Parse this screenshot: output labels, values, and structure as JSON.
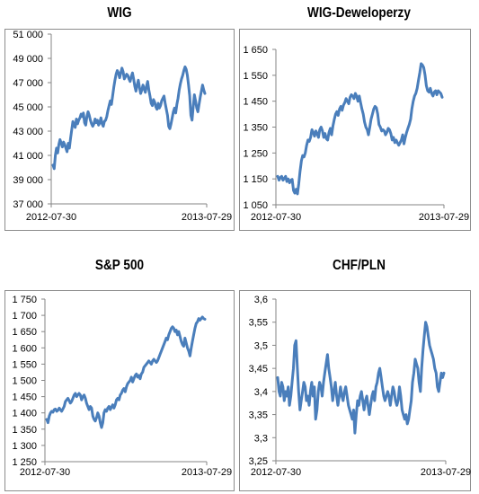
{
  "chart_data": [
    {
      "type": "line",
      "title": "WIG",
      "x_start_label": "2012-07-30",
      "x_end_label": "2013-07-29",
      "ylim": [
        37000,
        51000
      ],
      "y_ticks": [
        "37 000",
        "39 000",
        "41 000",
        "43 000",
        "45 000",
        "47 000",
        "49 000",
        "51 000"
      ],
      "y_tick_values": [
        37000,
        39000,
        41000,
        43000,
        45000,
        47000,
        49000,
        51000
      ],
      "grid": false,
      "series": [
        {
          "color": "#4a7ebb",
          "values": [
            40200,
            39900,
            41000,
            41600,
            41200,
            41900,
            42300,
            42000,
            41700,
            42100,
            41900,
            41600,
            41300,
            42000,
            41600,
            42400,
            43100,
            43800,
            43500,
            43300,
            44000,
            43600,
            43900,
            44100,
            44400,
            44200,
            44500,
            43700,
            43500,
            44200,
            44600,
            44300,
            43900,
            43600,
            43400,
            43600,
            44000,
            43700,
            43900,
            43500,
            43700,
            44100,
            43600,
            43400,
            43800,
            43900,
            44200,
            44700,
            45100,
            45500,
            45200,
            45900,
            46600,
            47200,
            47700,
            48000,
            47800,
            47400,
            47800,
            48200,
            47900,
            47300,
            47500,
            47700,
            47600,
            47300,
            47100,
            47500,
            47800,
            47300,
            46700,
            46300,
            46800,
            47200,
            46600,
            46100,
            46400,
            46800,
            46500,
            46200,
            46700,
            47100,
            46400,
            45900,
            45300,
            45100,
            45600,
            45400,
            45000,
            44800,
            45300,
            44900,
            45100,
            45500,
            45700,
            45900,
            45300,
            44800,
            44300,
            43400,
            43200,
            43600,
            44100,
            44600,
            44900,
            44500,
            45200,
            45700,
            46400,
            46900,
            47300,
            47600,
            48000,
            48300,
            48100,
            47600,
            46800,
            45900,
            44300,
            43900,
            45000,
            46000,
            45500,
            44900,
            44600,
            45200,
            45800,
            46300,
            46800,
            46400,
            46100
          ]
        }
      ]
    },
    {
      "type": "line",
      "title": "WIG-Deweloperzy",
      "x_start_label": "2012-07-30",
      "x_end_label": "2013-07-29",
      "ylim": [
        1050,
        1650
      ],
      "y_ticks": [
        "1 050",
        "1 150",
        "1 250",
        "1 350",
        "1 450",
        "1 550",
        "1 650"
      ],
      "y_tick_values": [
        1050,
        1150,
        1250,
        1350,
        1450,
        1550,
        1650
      ],
      "grid": false,
      "series": [
        {
          "color": "#4a7ebb",
          "values": [
            1160,
            1145,
            1155,
            1160,
            1145,
            1152,
            1160,
            1140,
            1150,
            1135,
            1145,
            1148,
            1105,
            1095,
            1110,
            1092,
            1130,
            1180,
            1220,
            1240,
            1235,
            1250,
            1280,
            1300,
            1295,
            1310,
            1340,
            1330,
            1315,
            1335,
            1325,
            1310,
            1340,
            1350,
            1335,
            1310,
            1325,
            1305,
            1300,
            1330,
            1345,
            1320,
            1355,
            1380,
            1400,
            1410,
            1395,
            1420,
            1430,
            1415,
            1435,
            1445,
            1460,
            1450,
            1440,
            1465,
            1475,
            1470,
            1460,
            1480,
            1470,
            1450,
            1470,
            1445,
            1420,
            1400,
            1370,
            1350,
            1340,
            1320,
            1350,
            1380,
            1400,
            1420,
            1430,
            1425,
            1400,
            1360,
            1350,
            1335,
            1340,
            1335,
            1320,
            1330,
            1345,
            1340,
            1325,
            1300,
            1310,
            1290,
            1300,
            1290,
            1280,
            1290,
            1300,
            1320,
            1285,
            1310,
            1330,
            1345,
            1360,
            1380,
            1420,
            1450,
            1470,
            1480,
            1500,
            1530,
            1560,
            1595,
            1590,
            1580,
            1550,
            1510,
            1490,
            1485,
            1500,
            1480,
            1470,
            1485,
            1490,
            1475,
            1490,
            1485,
            1480,
            1465
          ]
        }
      ]
    },
    {
      "type": "line",
      "title": "S&P 500",
      "x_start_label": "2012-07-30",
      "x_end_label": "2013-07-29",
      "ylim": [
        1250,
        1750
      ],
      "y_ticks": [
        "1 250",
        "1 300",
        "1 350",
        "1 400",
        "1 450",
        "1 500",
        "1 550",
        "1 600",
        "1 650",
        "1 700",
        "1 750"
      ],
      "y_tick_values": [
        1250,
        1300,
        1350,
        1400,
        1450,
        1500,
        1550,
        1600,
        1650,
        1700,
        1750
      ],
      "grid": false,
      "series": [
        {
          "color": "#4a7ebb",
          "values": [
            1380,
            1370,
            1390,
            1400,
            1405,
            1402,
            1410,
            1412,
            1405,
            1408,
            1415,
            1410,
            1405,
            1412,
            1420,
            1435,
            1440,
            1445,
            1438,
            1430,
            1435,
            1445,
            1455,
            1460,
            1450,
            1455,
            1460,
            1455,
            1440,
            1450,
            1455,
            1445,
            1430,
            1420,
            1410,
            1420,
            1415,
            1390,
            1380,
            1375,
            1385,
            1400,
            1390,
            1370,
            1355,
            1370,
            1400,
            1410,
            1405,
            1415,
            1420,
            1410,
            1418,
            1425,
            1415,
            1425,
            1440,
            1445,
            1440,
            1455,
            1460,
            1470,
            1475,
            1465,
            1480,
            1490,
            1495,
            1500,
            1510,
            1495,
            1505,
            1515,
            1520,
            1510,
            1515,
            1505,
            1520,
            1525,
            1540,
            1545,
            1550,
            1555,
            1560,
            1555,
            1550,
            1560,
            1565,
            1560,
            1555,
            1560,
            1570,
            1580,
            1590,
            1600,
            1610,
            1620,
            1630,
            1625,
            1640,
            1650,
            1660,
            1665,
            1660,
            1650,
            1655,
            1640,
            1650,
            1635,
            1620,
            1610,
            1605,
            1630,
            1615,
            1600,
            1590,
            1575,
            1600,
            1620,
            1640,
            1660,
            1675,
            1680,
            1690,
            1685,
            1690,
            1695,
            1690,
            1688
          ]
        }
      ]
    },
    {
      "type": "line",
      "title": "CHF/PLN",
      "x_start_label": "2012-07-30",
      "x_end_label": "2013-07-29",
      "ylim": [
        3.25,
        3.6
      ],
      "y_ticks": [
        "3,25",
        "3,3",
        "3,35",
        "3,4",
        "3,45",
        "3,5",
        "3,55",
        "3,6"
      ],
      "y_tick_values": [
        3.25,
        3.3,
        3.35,
        3.4,
        3.45,
        3.5,
        3.55,
        3.6
      ],
      "grid": false,
      "series": [
        {
          "color": "#4a7ebb",
          "values": [
            3.43,
            3.4,
            3.39,
            3.42,
            3.41,
            3.38,
            3.4,
            3.39,
            3.41,
            3.37,
            3.39,
            3.42,
            3.45,
            3.5,
            3.51,
            3.45,
            3.4,
            3.36,
            3.38,
            3.4,
            3.42,
            3.41,
            3.38,
            3.39,
            3.37,
            3.4,
            3.42,
            3.39,
            3.41,
            3.34,
            3.36,
            3.4,
            3.42,
            3.41,
            3.39,
            3.42,
            3.44,
            3.46,
            3.48,
            3.45,
            3.43,
            3.41,
            3.38,
            3.4,
            3.42,
            3.39,
            3.37,
            3.39,
            3.41,
            3.39,
            3.38,
            3.4,
            3.41,
            3.39,
            3.37,
            3.36,
            3.35,
            3.34,
            3.36,
            3.31,
            3.35,
            3.38,
            3.37,
            3.39,
            3.4,
            3.38,
            3.36,
            3.38,
            3.39,
            3.37,
            3.35,
            3.37,
            3.39,
            3.4,
            3.38,
            3.41,
            3.42,
            3.44,
            3.45,
            3.43,
            3.41,
            3.39,
            3.38,
            3.39,
            3.4,
            3.39,
            3.37,
            3.39,
            3.41,
            3.4,
            3.38,
            3.37,
            3.38,
            3.41,
            3.39,
            3.36,
            3.35,
            3.34,
            3.35,
            3.33,
            3.34,
            3.36,
            3.38,
            3.42,
            3.44,
            3.47,
            3.46,
            3.45,
            3.42,
            3.4,
            3.45,
            3.49,
            3.52,
            3.55,
            3.54,
            3.52,
            3.5,
            3.49,
            3.48,
            3.47,
            3.45,
            3.44,
            3.41,
            3.4,
            3.42,
            3.44,
            3.43,
            3.44
          ]
        }
      ]
    }
  ]
}
